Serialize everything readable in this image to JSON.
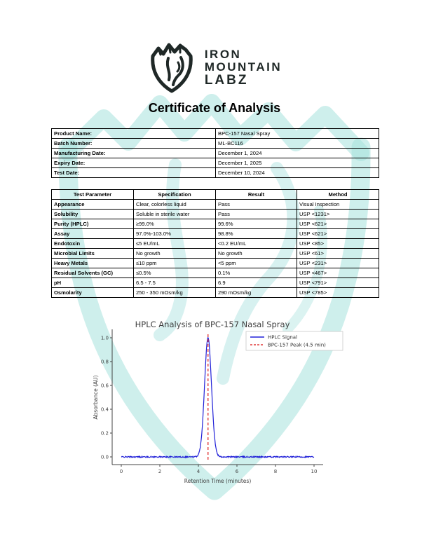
{
  "colors": {
    "ink": "#1f2827",
    "table_border": "#000000",
    "watermark": "#a6e1dd",
    "hplc_line": "#2020d8",
    "peak_marker": "#e23b3b",
    "chart_text": "#3f3f3f"
  },
  "logo": {
    "mark": "mountain-shield-wolf-emblem",
    "name_line1": "IRON",
    "name_line2": "MOUNTAIN",
    "name_line3": "LABZ"
  },
  "title": "Certificate of Analysis",
  "product_info": {
    "rows": [
      {
        "label": "Product Name:",
        "value": "BPC-157 Nasal Spray"
      },
      {
        "label": "Batch Number:",
        "value": "ML-BC116"
      },
      {
        "label": "Manufacturing Date:",
        "value": "December 1, 2024"
      },
      {
        "label": "Expiry Date:",
        "value": "December 1, 2025"
      },
      {
        "label": "Test Date:",
        "value": "December 10, 2024"
      }
    ]
  },
  "test_table": {
    "headers": [
      "Test Parameter",
      "Specification",
      "Result",
      "Method"
    ],
    "rows": [
      [
        "Appearance",
        "Clear, colorless liquid",
        "Pass",
        "Visual Inspection"
      ],
      [
        "Solubility",
        "Soluble in sterile water",
        "Pass",
        "USP <1231>"
      ],
      [
        "Purity (HPLC)",
        "≥99.0%",
        "99.6%",
        "USP <621>"
      ],
      [
        "Assay",
        "97.0%-103.0%",
        "98.8%",
        "USP <621>"
      ],
      [
        "Endotoxin",
        "≤5 EU/mL",
        "<0.2 EU/mL",
        "USP <85>"
      ],
      [
        "Microbial Limits",
        "No growth",
        "No growth",
        "USP <61>"
      ],
      [
        "Heavy Metals",
        "≤10 ppm",
        "<5 ppm",
        "USP <231>"
      ],
      [
        "Residual Solvents (GC)",
        "≤0.5%",
        "0.1%",
        "USP <467>"
      ],
      [
        "pH",
        "6.5 - 7.5",
        "6.9",
        "USP <791>"
      ],
      [
        "Osmolarity",
        "250 - 350 mOsm/kg",
        "290 mOsm/kg",
        "USP <785>"
      ]
    ]
  },
  "chart_data": {
    "type": "line",
    "title": "HPLC Analysis of BPC-157 Nasal Spray",
    "xlabel": "Retention Time (minutes)",
    "ylabel": "Absorbance (AU)",
    "xlim": [
      0,
      10
    ],
    "ylim": [
      0,
      1.0
    ],
    "xticks": [
      0,
      2,
      4,
      6,
      8,
      10
    ],
    "yticks": [
      0.0,
      0.2,
      0.4,
      0.6,
      0.8,
      1.0
    ],
    "grid": false,
    "legend_position": "upper right",
    "series": [
      {
        "name": "HPLC Signal",
        "kind": "line",
        "color": "#2020d8",
        "baseline": 0.0,
        "noise_amplitude": 0.005,
        "peak": {
          "center": 4.5,
          "height": 1.0,
          "sigma": 0.18
        }
      },
      {
        "name": "BPC-157 Peak (4.5 min)",
        "kind": "vline",
        "color": "#e23b3b",
        "x": 4.5,
        "style": "dashed"
      }
    ]
  }
}
